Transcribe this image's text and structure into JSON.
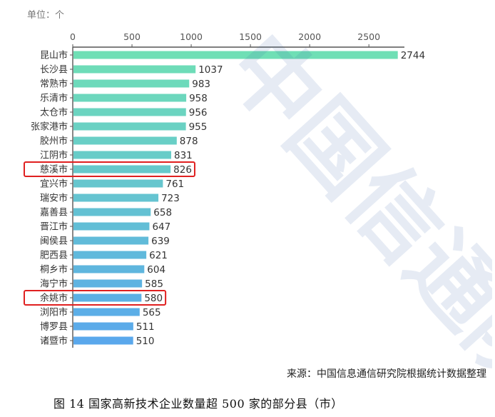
{
  "unit_label": "单位：个",
  "source_note": "来源：中国信息通信研究院根据统计数据整理",
  "caption": "图 14 国家高新技术企业数量超 500 家的部分县（市）",
  "watermark": "中国信通院",
  "colors": {
    "bar_top": "#6fdfb5",
    "bar_bottom": "#5aa8ec",
    "highlight_box": "#e02020",
    "axis": "#555555"
  },
  "chart_data": {
    "type": "bar",
    "orientation": "horizontal",
    "categories": [
      "昆山市",
      "长沙县",
      "常熟市",
      "乐清市",
      "太仓市",
      "张家港市",
      "胶州市",
      "江阴市",
      "慈溪市",
      "宜兴市",
      "瑞安市",
      "嘉善县",
      "晋江市",
      "闽侯县",
      "肥西县",
      "桐乡市",
      "海宁市",
      "余姚市",
      "浏阳市",
      "博罗县",
      "诸暨市"
    ],
    "values": [
      2744,
      1037,
      983,
      958,
      956,
      955,
      878,
      831,
      826,
      761,
      723,
      658,
      647,
      639,
      621,
      604,
      585,
      580,
      565,
      511,
      510
    ],
    "highlighted": [
      "慈溪市",
      "余姚市"
    ],
    "xlim": [
      0,
      2800
    ],
    "xticks": [
      0,
      500,
      1000,
      1500,
      2000,
      2500
    ],
    "xlabel": "",
    "ylabel": "",
    "grid": false,
    "legend": "none"
  }
}
